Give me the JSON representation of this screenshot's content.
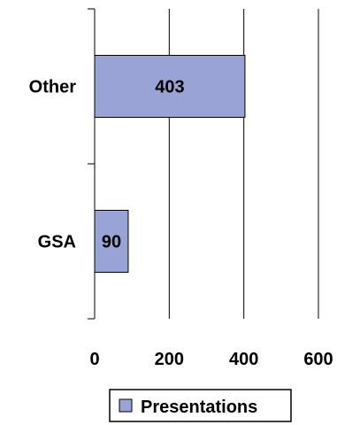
{
  "chart_data": {
    "type": "bar",
    "orientation": "horizontal",
    "categories": [
      "Other",
      "GSA"
    ],
    "series": [
      {
        "name": "Presentations",
        "values": [
          403,
          90
        ]
      }
    ],
    "xlim": [
      0,
      600
    ],
    "x_ticks": [
      "0",
      "200",
      "400",
      "600"
    ],
    "grid": "vertical",
    "legend_position": "bottom",
    "data_labels": [
      "403",
      "90"
    ],
    "colors": {
      "bar_fill": "#99a3d6",
      "bar_stroke": "#000000",
      "grid": "#000000",
      "background": "#ffffff"
    }
  }
}
